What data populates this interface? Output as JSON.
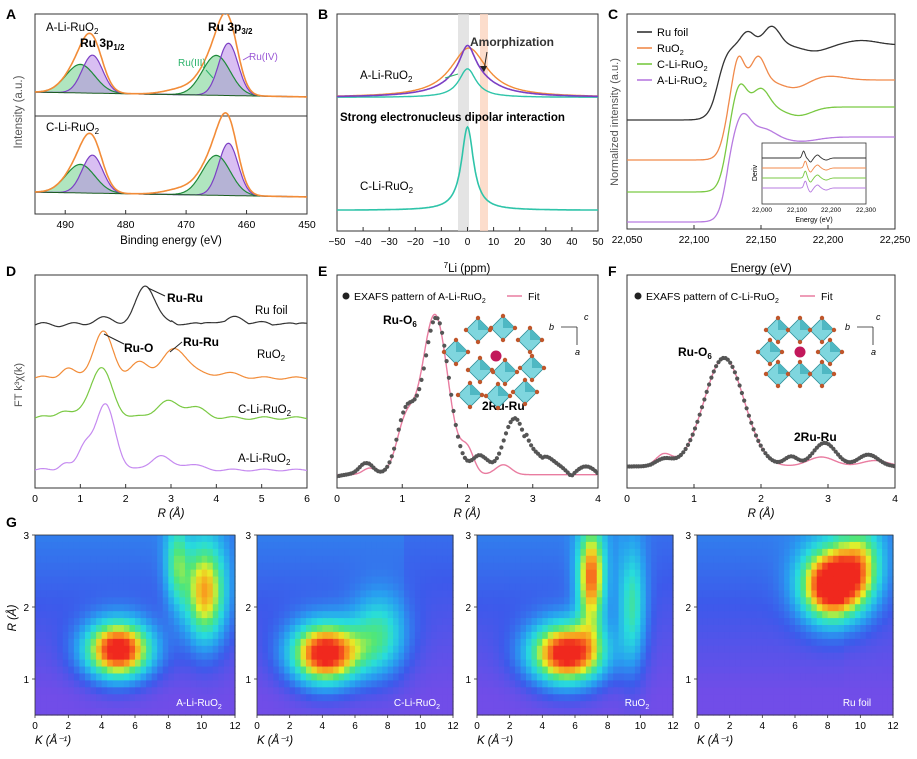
{
  "chart_data": [
    {
      "id": "A",
      "type": "line",
      "panel_label": "A",
      "xlabel": "Binding energy (eV)",
      "ylabel": "Intensity (a.u.)",
      "xlim": [
        495,
        450
      ],
      "xticks": [
        490,
        480,
        470,
        460,
        450
      ],
      "labels": {
        "a_li": "A-Li-RuO",
        "c_li": "C-Li-RuO",
        "sub2": "2",
        "ru3p12": "Ru 3p",
        "ru3p12_sub": "1/2",
        "ru3p32": "Ru 3p",
        "ru3p32_sub": "3/2",
        "ru3": "Ru(III)",
        "ru4": "Ru(IV)"
      },
      "peaks_eV": {
        "ru3p12": 485.5,
        "ru3p32": 463.0
      }
    },
    {
      "id": "B",
      "type": "line",
      "panel_label": "B",
      "xlabel": "Li (ppm)",
      "xlabel_sup": "7",
      "xlim": [
        -50,
        50
      ],
      "xticks": [
        -50,
        -40,
        -30,
        -20,
        -10,
        0,
        10,
        20,
        30,
        40,
        50
      ],
      "labels": {
        "a_li": "A-Li-RuO",
        "c_li": "C-Li-RuO",
        "sub2": "2",
        "amorph": "Amorphization",
        "dipolar": "Strong electronucleus dipolar interaction"
      },
      "peak_ppm": 0
    },
    {
      "id": "C",
      "type": "line",
      "panel_label": "C",
      "xlabel": "Energy (eV)",
      "ylabel": "Normalized intensity (a.u.)",
      "xlim": [
        22050,
        22250
      ],
      "xticks": [
        "22,050",
        "22,100",
        "22,150",
        "22,200",
        "22,250"
      ],
      "legend": [
        "Ru foil",
        "RuO",
        "C-Li-RuO",
        "A-Li-RuO"
      ],
      "legend_sub": "2",
      "legend_colors": [
        "#333333",
        "#f08a4b",
        "#7ac943",
        "#b77be0"
      ],
      "inset": {
        "xlabel": "Energy (eV)",
        "ylabel": "Deriv",
        "xticks": [
          "22,000",
          "22,100",
          "22,200",
          "22,300"
        ]
      }
    },
    {
      "id": "D",
      "type": "line",
      "panel_label": "D",
      "xlabel": "R (Å)",
      "ylabel": "FT k³χ(k)",
      "xlim": [
        0,
        6
      ],
      "xticks": [
        0,
        1,
        2,
        3,
        4,
        5,
        6
      ],
      "series": [
        "Ru foil",
        "RuO",
        "C-Li-RuO",
        "A-Li-RuO"
      ],
      "series_sub": "2",
      "annotations": {
        "ruru_foil": "Ru-Ru",
        "ruo": "Ru-O",
        "ruru_ruo2": "Ru-Ru"
      }
    },
    {
      "id": "E",
      "type": "line",
      "panel_label": "E",
      "xlabel": "R (Å)",
      "xlim": [
        0,
        4
      ],
      "xticks": [
        0,
        1,
        2,
        3,
        4
      ],
      "legend_data": "EXAFS pattern of A-Li-RuO",
      "legend_fit": "Fit",
      "legend_sub": "2",
      "labels": {
        "ruo6": "Ru-O",
        "ruo6_sub": "6",
        "ruru": "2Ru-Ru",
        "axis_b": "b",
        "axis_c": "c",
        "axis_a": "a"
      }
    },
    {
      "id": "F",
      "type": "line",
      "panel_label": "F",
      "xlabel": "R (Å)",
      "xlim": [
        0,
        4
      ],
      "xticks": [
        0,
        1,
        2,
        3,
        4
      ],
      "legend_data": "EXAFS pattern of C-Li-RuO",
      "legend_fit": "Fit",
      "legend_sub": "2",
      "labels": {
        "ruo6": "Ru-O",
        "ruo6_sub": "6",
        "ruru": "2Ru-Ru",
        "axis_b": "b",
        "axis_c": "c",
        "axis_a": "a"
      }
    },
    {
      "id": "G",
      "type": "heatmap",
      "panel_label": "G",
      "xlabel": "K (Å⁻¹)",
      "ylabel": "R (Å)",
      "xlim": [
        0,
        12
      ],
      "ylim": [
        0.5,
        3
      ],
      "xticks": [
        0,
        2,
        4,
        6,
        8,
        10,
        12
      ],
      "yticks": [
        1,
        2,
        3
      ],
      "maps": [
        {
          "name": "A-Li-RuO",
          "sub": "2",
          "peaks": [
            {
              "k": 5,
              "r": 1.4,
              "a": 1.0,
              "sk": 1.4,
              "sr": 0.28
            },
            {
              "k": 10.2,
              "r": 2.2,
              "a": 0.7,
              "sk": 0.9,
              "sr": 0.5
            },
            {
              "k": 8.5,
              "r": 2.6,
              "a": 0.35,
              "sk": 0.5,
              "sr": 0.4
            }
          ]
        },
        {
          "name": "C-Li-RuO",
          "sub": "2",
          "peaks": [
            {
              "k": 4.2,
              "r": 1.35,
              "a": 1.0,
              "sk": 1.5,
              "sr": 0.3
            },
            {
              "k": 7.5,
              "r": 1.6,
              "a": 0.4,
              "sk": 1.2,
              "sr": 0.4
            }
          ]
        },
        {
          "name": "RuO",
          "sub": "2",
          "peaks": [
            {
              "k": 5.5,
              "r": 1.35,
              "a": 1.0,
              "sk": 1.6,
              "sr": 0.3
            },
            {
              "k": 7.0,
              "r": 2.4,
              "a": 0.75,
              "sk": 0.6,
              "sr": 0.5
            },
            {
              "k": 9.5,
              "r": 2.0,
              "a": 0.4,
              "sk": 0.6,
              "sr": 0.6
            }
          ]
        },
        {
          "name": "Ru foil",
          "sub": "",
          "peaks": [
            {
              "k": 8.2,
              "r": 2.3,
              "a": 1.0,
              "sk": 1.3,
              "sr": 0.35
            },
            {
              "k": 10,
              "r": 2.6,
              "a": 0.5,
              "sk": 1.0,
              "sr": 0.4
            }
          ]
        }
      ]
    }
  ]
}
